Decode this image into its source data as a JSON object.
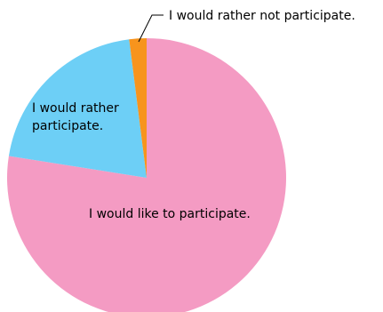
{
  "chart_data": {
    "type": "pie",
    "categories": [
      "I would like to participate.",
      "I would rather participate.",
      "I would rather not participate."
    ],
    "values": [
      77.5,
      20.5,
      2.0
    ],
    "colors": [
      "#F49BC3",
      "#6DCFF6",
      "#F7941D"
    ],
    "labels": {
      "slice_0": "I would like to participate.",
      "slice_1_line1": "I would rather",
      "slice_1_line2": "participate.",
      "slice_2": "I would rather not participate."
    },
    "start": "top",
    "direction": "clockwise"
  }
}
